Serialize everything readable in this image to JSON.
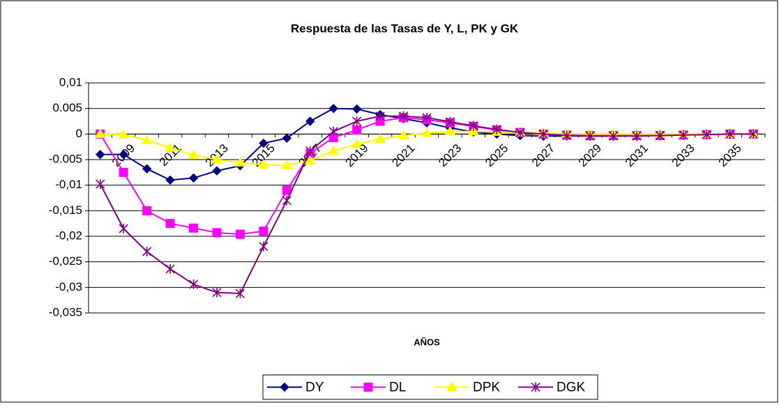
{
  "chart_data": {
    "type": "line",
    "title": "Respuesta de las Tasas de Y, L, PK y GK",
    "x_label": "AÑOS",
    "categories": [
      null,
      "2009",
      null,
      "2011",
      null,
      "2013",
      null,
      "2015",
      null,
      "2017",
      null,
      "2019",
      null,
      "2021",
      null,
      "2023",
      null,
      "2025",
      null,
      "2027",
      null,
      "2029",
      null,
      "2031",
      null,
      "2033",
      null,
      "2035",
      null
    ],
    "series": [
      {
        "name": "DY",
        "color": "#000080",
        "marker": "diamond",
        "values": [
          -0.004,
          -0.004,
          -0.0068,
          -0.009,
          -0.0086,
          -0.0072,
          -0.0062,
          -0.0018,
          -0.0008,
          0.0025,
          0.005,
          0.0049,
          0.0038,
          0.003,
          0.0022,
          0.0012,
          0.0004,
          0,
          -0.0003,
          -0.0004,
          -0.0004,
          -0.0004,
          -0.0004,
          -0.0003,
          -0.0003,
          -0.0002,
          -0.0001,
          0,
          0
        ]
      },
      {
        "name": "DL",
        "color": "#ff00ff",
        "marker": "square",
        "values": [
          0,
          -0.0075,
          -0.015,
          -0.0175,
          -0.0184,
          -0.0193,
          -0.0196,
          -0.019,
          -0.011,
          -0.0038,
          -0.0007,
          0.0008,
          0.0025,
          0.0032,
          0.0028,
          0.0022,
          0.0015,
          0.0008,
          0.0003,
          0,
          -0.0002,
          -0.0003,
          -0.0003,
          -0.0003,
          -0.0003,
          -0.0002,
          -0.0001,
          0,
          0
        ]
      },
      {
        "name": "DPK",
        "color": "#ffff00",
        "marker": "triangle",
        "values": [
          0,
          -0.0001,
          -0.0012,
          -0.0027,
          -0.0041,
          -0.005,
          -0.0056,
          -0.006,
          -0.0061,
          -0.0052,
          -0.0033,
          -0.002,
          -0.001,
          -0.0003,
          0.0002,
          0.0005,
          0.0005,
          0.0004,
          0.0003,
          0.0002,
          0.0001,
          0,
          0,
          0,
          0,
          0,
          0,
          0,
          0
        ]
      },
      {
        "name": "DGK",
        "color": "#800080",
        "marker": "asterisk",
        "values": [
          -0.0098,
          -0.0185,
          -0.023,
          -0.0264,
          -0.0294,
          -0.031,
          -0.0312,
          -0.022,
          -0.013,
          -0.0033,
          0.0005,
          0.0025,
          0.0035,
          0.0035,
          0.0032,
          0.0024,
          0.0016,
          0.0009,
          0.0003,
          0,
          -0.0003,
          -0.0004,
          -0.0004,
          -0.0004,
          -0.0003,
          -0.0002,
          -0.0001,
          0,
          0
        ]
      }
    ],
    "ylim": [
      -0.035,
      0.01
    ],
    "yticks": [
      {
        "value": -0.035,
        "label": "-0,035"
      },
      {
        "value": -0.03,
        "label": "-0,03"
      },
      {
        "value": -0.025,
        "label": "-0,025"
      },
      {
        "value": -0.02,
        "label": "-0,02"
      },
      {
        "value": -0.015,
        "label": "-0,015"
      },
      {
        "value": -0.01,
        "label": "-0,01"
      },
      -0.005,
      0,
      0.005,
      {
        "value": 0.01,
        "label": "0,01"
      }
    ],
    "grid": true,
    "legend": "bottom"
  }
}
